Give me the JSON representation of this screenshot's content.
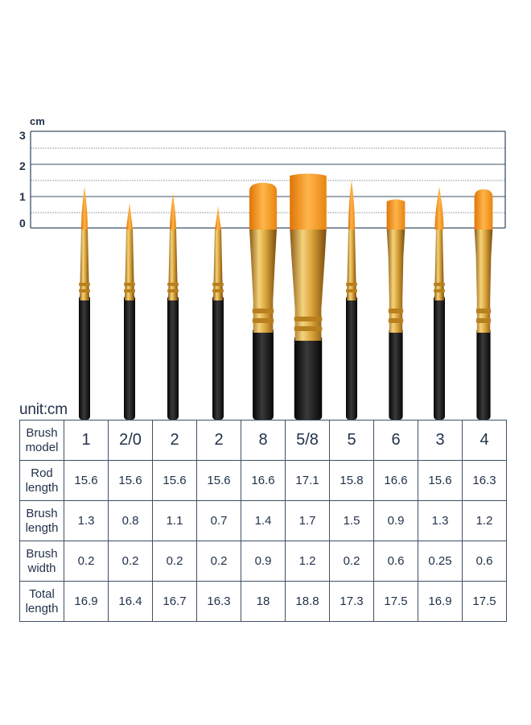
{
  "ruler": {
    "unit": "cm",
    "ticks": [
      "3",
      "2",
      "1",
      "0"
    ]
  },
  "colors": {
    "frame": "#3d5066",
    "text": "#22324a",
    "bristle": "#f08c12",
    "ferrule": "#d9a33a",
    "handle": "#1a1a1a"
  },
  "brushes": [
    {
      "model": "1",
      "shape": "round",
      "brush_length": 1.3,
      "brush_width": 0.2
    },
    {
      "model": "2/0",
      "shape": "round",
      "brush_length": 0.8,
      "brush_width": 0.2
    },
    {
      "model": "2",
      "shape": "round",
      "brush_length": 1.1,
      "brush_width": 0.2
    },
    {
      "model": "2",
      "shape": "round",
      "brush_length": 0.7,
      "brush_width": 0.2
    },
    {
      "model": "8",
      "shape": "filbert",
      "brush_length": 1.4,
      "brush_width": 0.9
    },
    {
      "model": "5/8",
      "shape": "flat",
      "brush_length": 1.7,
      "brush_width": 1.2
    },
    {
      "model": "5",
      "shape": "round",
      "brush_length": 1.5,
      "brush_width": 0.2
    },
    {
      "model": "6",
      "shape": "flat",
      "brush_length": 0.9,
      "brush_width": 0.6
    },
    {
      "model": "3",
      "shape": "round",
      "brush_length": 1.3,
      "brush_width": 0.25
    },
    {
      "model": "4",
      "shape": "filbert",
      "brush_length": 1.2,
      "brush_width": 0.6
    }
  ],
  "table": {
    "unit_label": "unit:cm",
    "rows": [
      {
        "label_1": "Brush",
        "label_2": "model",
        "values": [
          "1",
          "2/0",
          "2",
          "2",
          "8",
          "5/8",
          "5",
          "6",
          "3",
          "4"
        ]
      },
      {
        "label_1": "Rod",
        "label_2": "length",
        "values": [
          "15.6",
          "15.6",
          "15.6",
          "15.6",
          "16.6",
          "17.1",
          "15.8",
          "16.6",
          "15.6",
          "16.3"
        ]
      },
      {
        "label_1": "Brush",
        "label_2": "length",
        "values": [
          "1.3",
          "0.8",
          "1.1",
          "0.7",
          "1.4",
          "1.7",
          "1.5",
          "0.9",
          "1.3",
          "1.2"
        ]
      },
      {
        "label_1": "Brush",
        "label_2": "width",
        "values": [
          "0.2",
          "0.2",
          "0.2",
          "0.2",
          "0.9",
          "1.2",
          "0.2",
          "0.6",
          "0.25",
          "0.6"
        ]
      },
      {
        "label_1": "Total",
        "label_2": "length",
        "values": [
          "16.9",
          "16.4",
          "16.7",
          "16.3",
          "18",
          "18.8",
          "17.3",
          "17.5",
          "16.9",
          "17.5"
        ]
      }
    ]
  }
}
